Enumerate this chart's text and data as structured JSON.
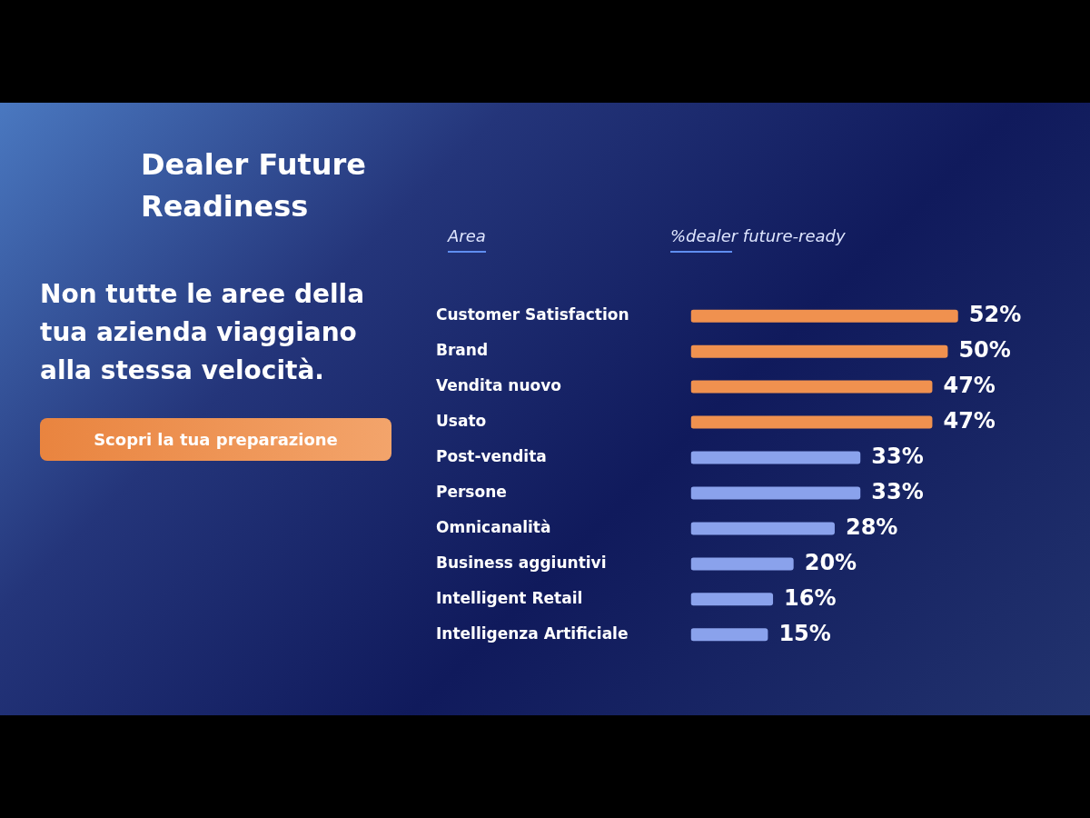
{
  "chart_data": {
    "type": "bar",
    "orientation": "horizontal",
    "title": "Dealer Future Readiness",
    "subtitle": "Non tutte le aree della tua azienda viaggiano alla stessa velocità.",
    "ylabel": "Area",
    "xlabel": "%dealer future-ready",
    "categories": [
      "Customer Satisfaction",
      "Brand",
      "Vendita nuovo",
      "Usato",
      "Post-vendita",
      "Persone",
      "Omnicanalità",
      "Business aggiuntivi",
      "Intelligent Retail",
      "Intelligenza Artificiale"
    ],
    "values": [
      52,
      50,
      47,
      47,
      33,
      33,
      28,
      20,
      16,
      15
    ],
    "value_labels": [
      "52%",
      "50%",
      "47%",
      "47%",
      "33%",
      "33%",
      "28%",
      "20%",
      "16%",
      "15%"
    ],
    "colors": [
      "#f0914f",
      "#f0914f",
      "#f0914f",
      "#f0914f",
      "#8aa2ec",
      "#8aa2ec",
      "#8aa2ec",
      "#8aa2ec",
      "#8aa2ec",
      "#8aa2ec"
    ],
    "annotations": [
      "Scopri la tua preparazione"
    ],
    "legend": false,
    "grid": false,
    "tick_labels": "y"
  }
}
